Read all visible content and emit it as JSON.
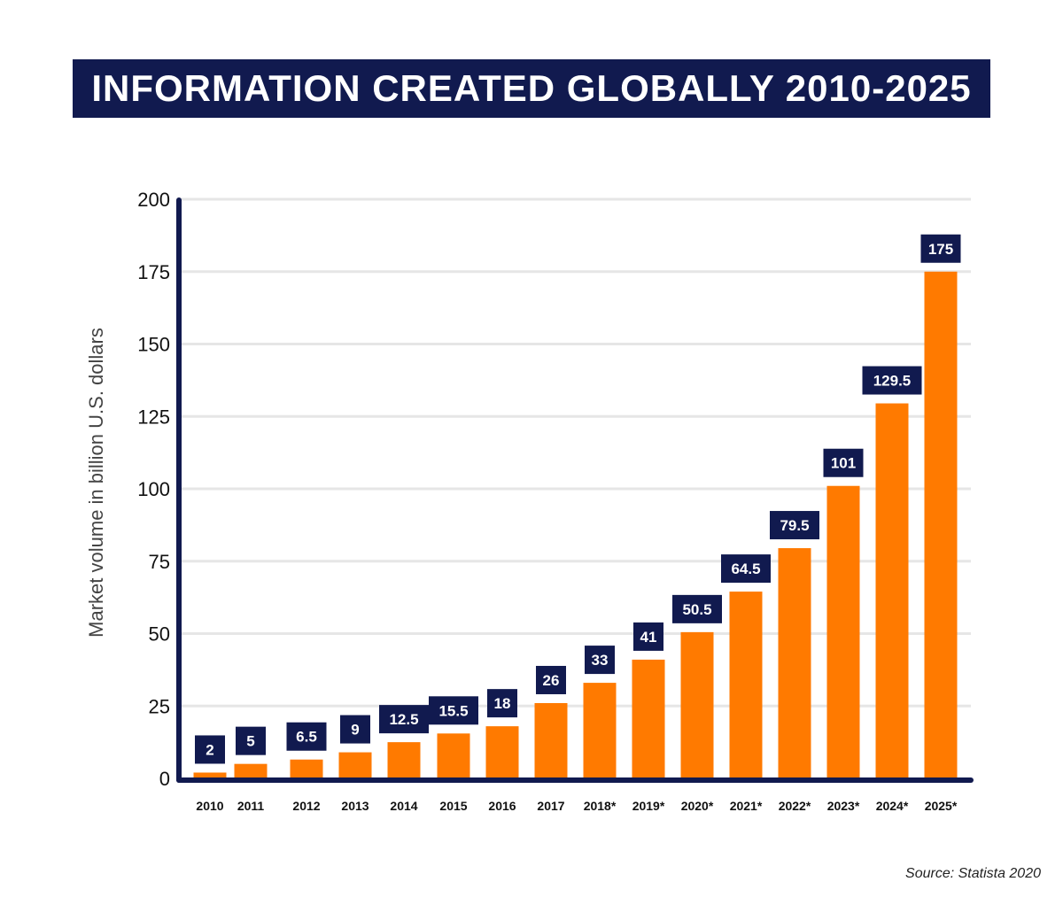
{
  "title": "INFORMATION CREATED GLOBALLY 2010-2025",
  "source": "Source: Statista 2020",
  "colors": {
    "bar": "#ff7a00",
    "label_bg": "#111a4f",
    "axis": "#111a4f",
    "grid": "#e6e6e6"
  },
  "chart_data": {
    "type": "bar",
    "title": "INFORMATION CREATED GLOBALLY 2010-2025",
    "xlabel": "",
    "ylabel": "Market volume in billion U.S. dollars",
    "categories": [
      "2010",
      "2011",
      "2012",
      "2013",
      "2014",
      "2015",
      "2016",
      "2017",
      "2018*",
      "2019*",
      "2020*",
      "2021*",
      "2022*",
      "2023*",
      "2024*",
      "2025*"
    ],
    "values": [
      2,
      5,
      6.5,
      9,
      12.5,
      15.5,
      18,
      26,
      33,
      41,
      50.5,
      64.5,
      79.5,
      101,
      129.5,
      175
    ],
    "value_labels": [
      "2",
      "5",
      "6.5",
      "9",
      "12.5",
      "15.5",
      "18",
      "26",
      "33",
      "41",
      "50.5",
      "64.5",
      "79.5",
      "101",
      "129.5",
      "175"
    ],
    "yticks": [
      "0",
      "25",
      "50",
      "75",
      "100",
      "125",
      "150",
      "175",
      "200"
    ],
    "ylim": [
      0,
      200
    ],
    "grid": true,
    "legend": "none"
  }
}
